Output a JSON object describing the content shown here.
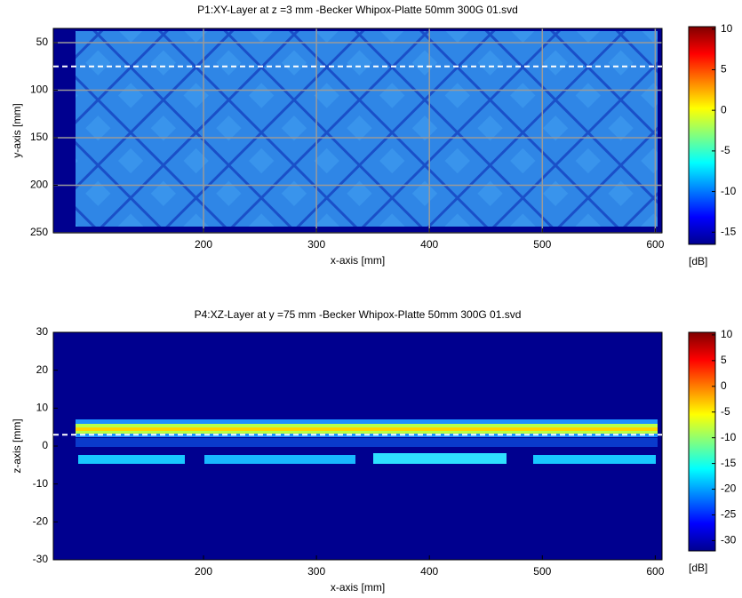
{
  "chart_data": [
    {
      "type": "heatmap",
      "title": "P1:XY-Layer at z =3  mm  -Becker Whipox-Platte 50mm 300G 01.svd",
      "xlabel": "x-axis   [mm]",
      "ylabel": "y-axis   [mm]",
      "xlim": [
        67,
        606
      ],
      "xticks": [
        200,
        300,
        400,
        500,
        600
      ],
      "ylim": [
        250,
        35
      ],
      "yticks": [
        50,
        100,
        150,
        200,
        250
      ],
      "grid": true,
      "cut_line": 75,
      "colormap": "jet",
      "colorbar": {
        "lim": [
          -16.5,
          10.3
        ],
        "ticks": [
          10,
          5,
          0,
          -5,
          -10,
          -15
        ],
        "label": "[dB]"
      }
    },
    {
      "type": "heatmap",
      "title": "P4:XZ-Layer at y =75  mm  -Becker Whipox-Platte 50mm 300G 01.svd",
      "xlabel": "x-axis   [mm]",
      "ylabel": "z-axis   [mm]",
      "xlim": [
        67,
        606
      ],
      "xticks": [
        200,
        300,
        400,
        500,
        600
      ],
      "ylim": [
        -30,
        30
      ],
      "yticks": [
        30,
        20,
        10,
        0,
        -10,
        -20,
        -30
      ],
      "grid": false,
      "cut_line": 3,
      "colormap": "jet",
      "colorbar": {
        "lim": [
          -32,
          10.5
        ],
        "ticks": [
          10,
          5,
          0,
          -5,
          -10,
          -15,
          -20,
          -25,
          -30
        ],
        "label": "[dB]"
      }
    }
  ]
}
